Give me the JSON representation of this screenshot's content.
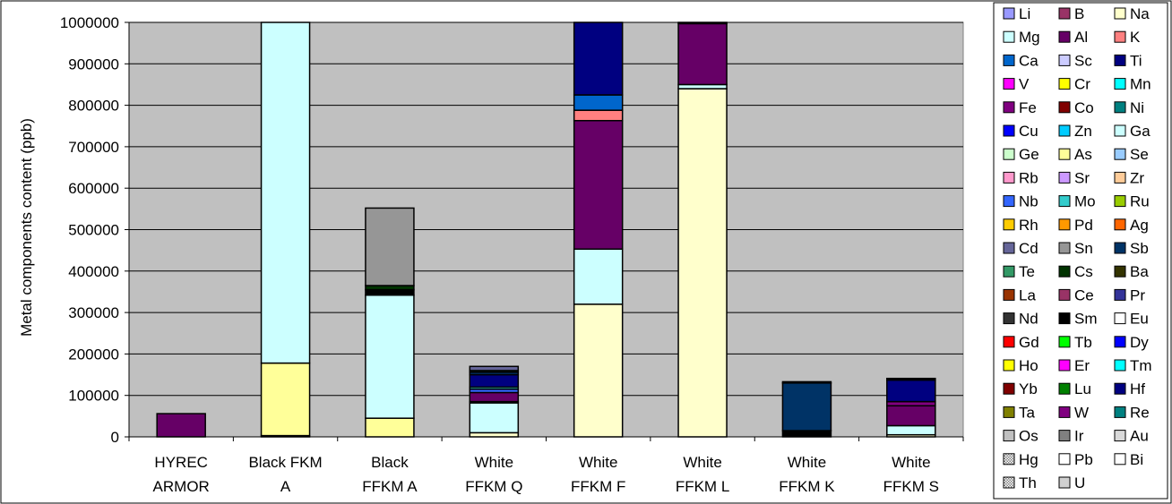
{
  "chart_data": {
    "type": "bar",
    "stacked": true,
    "title": "",
    "xlabel": "",
    "ylabel": "Metal components content (ppb)",
    "ylim": [
      0,
      1000000
    ],
    "yticks": [
      "0",
      "100000",
      "200000",
      "300000",
      "400000",
      "500000",
      "600000",
      "700000",
      "800000",
      "900000",
      "1000000"
    ],
    "ytick_values": [
      0,
      100000,
      200000,
      300000,
      400000,
      500000,
      600000,
      700000,
      800000,
      900000,
      1000000
    ],
    "grid": true,
    "plot_background": "#c0c0c0",
    "legend_position": "right",
    "categories": [
      [
        "HYREC",
        "ARMOR"
      ],
      [
        "Black FKM",
        "A"
      ],
      [
        "Black",
        "FFKM A"
      ],
      [
        "White",
        "FFKM Q"
      ],
      [
        "White",
        "FFKM F"
      ],
      [
        "White",
        "FFKM L"
      ],
      [
        "White",
        "FFKM K"
      ],
      [
        "White",
        "FFKM S"
      ]
    ],
    "legend": [
      {
        "name": "Li",
        "color": "#9999ff"
      },
      {
        "name": "B",
        "color": "#993366"
      },
      {
        "name": "Na",
        "color": "#ffffcc"
      },
      {
        "name": "Mg",
        "color": "#ccffff"
      },
      {
        "name": "Al",
        "color": "#660066"
      },
      {
        "name": "K",
        "color": "#ff8080"
      },
      {
        "name": "Ca",
        "color": "#0066cc"
      },
      {
        "name": "Sc",
        "color": "#ccccff"
      },
      {
        "name": "Ti",
        "color": "#000080"
      },
      {
        "name": "V",
        "color": "#ff00ff"
      },
      {
        "name": "Cr",
        "color": "#ffff00"
      },
      {
        "name": "Mn",
        "color": "#00ffff"
      },
      {
        "name": "Fe",
        "color": "#800080"
      },
      {
        "name": "Co",
        "color": "#800000"
      },
      {
        "name": "Ni",
        "color": "#008080"
      },
      {
        "name": "Cu",
        "color": "#0000ff"
      },
      {
        "name": "Zn",
        "color": "#00ccff"
      },
      {
        "name": "Ga",
        "color": "#ccffff"
      },
      {
        "name": "Ge",
        "color": "#ccffcc"
      },
      {
        "name": "As",
        "color": "#ffff99"
      },
      {
        "name": "Se",
        "color": "#99ccff"
      },
      {
        "name": "Rb",
        "color": "#ff99cc"
      },
      {
        "name": "Sr",
        "color": "#cc99ff"
      },
      {
        "name": "Zr",
        "color": "#ffcc99"
      },
      {
        "name": "Nb",
        "color": "#3366ff"
      },
      {
        "name": "Mo",
        "color": "#33cccc"
      },
      {
        "name": "Ru",
        "color": "#99cc00"
      },
      {
        "name": "Rh",
        "color": "#ffcc00"
      },
      {
        "name": "Pd",
        "color": "#ff9900"
      },
      {
        "name": "Ag",
        "color": "#ff6600"
      },
      {
        "name": "Cd",
        "color": "#666699"
      },
      {
        "name": "Sn",
        "color": "#969696"
      },
      {
        "name": "Sb",
        "color": "#003366"
      },
      {
        "name": "Te",
        "color": "#339966"
      },
      {
        "name": "Cs",
        "color": "#003300"
      },
      {
        "name": "Ba",
        "color": "#333300"
      },
      {
        "name": "La",
        "color": "#993300"
      },
      {
        "name": "Ce",
        "color": "#993366"
      },
      {
        "name": "Pr",
        "color": "#333399"
      },
      {
        "name": "Nd",
        "color": "#333333"
      },
      {
        "name": "Sm",
        "color": "#000000"
      },
      {
        "name": "Eu",
        "color": "#ffffff"
      },
      {
        "name": "Gd",
        "color": "#ff0000"
      },
      {
        "name": "Tb",
        "color": "#00ff00"
      },
      {
        "name": "Dy",
        "color": "#0000ff"
      },
      {
        "name": "Ho",
        "color": "#ffff00"
      },
      {
        "name": "Er",
        "color": "#ff00ff"
      },
      {
        "name": "Tm",
        "color": "#00ffff"
      },
      {
        "name": "Yb",
        "color": "#800000"
      },
      {
        "name": "Lu",
        "color": "#008000"
      },
      {
        "name": "Hf",
        "color": "#000080"
      },
      {
        "name": "Ta",
        "color": "#808000"
      },
      {
        "name": "W",
        "color": "#800080"
      },
      {
        "name": "Re",
        "color": "#008080"
      },
      {
        "name": "Os",
        "color": "#c0c0c0"
      },
      {
        "name": "Ir",
        "color": "#808080"
      },
      {
        "name": "Au",
        "color": "#d9d9d9"
      },
      {
        "name": "Hg",
        "color": "#a0a0a0",
        "pattern": true
      },
      {
        "name": "Pb",
        "color": "#ffffff"
      },
      {
        "name": "Bi",
        "color": "#ffffff"
      },
      {
        "name": "Th",
        "color": "#a0a0a0",
        "pattern": true
      },
      {
        "name": "U",
        "color": "#d0d0d0"
      }
    ],
    "stacks": [
      [
        {
          "element": "Al",
          "value": 56000
        }
      ],
      [
        {
          "element": "Na",
          "value": 3000
        },
        {
          "element": "As",
          "value": 175000
        },
        {
          "element": "Mg",
          "value": 822000
        }
      ],
      [
        {
          "element": "As",
          "value": 45000
        },
        {
          "element": "Mg",
          "value": 297000
        },
        {
          "element": "Sm",
          "value": 13000
        },
        {
          "element": "Cs",
          "value": 10000
        },
        {
          "element": "Sn",
          "value": 187000
        }
      ],
      [
        {
          "element": "Na",
          "value": 10000
        },
        {
          "element": "Mg",
          "value": 72000
        },
        {
          "element": "K",
          "value": 3000
        },
        {
          "element": "Al",
          "value": 22000
        },
        {
          "element": "Nb",
          "value": 8000
        },
        {
          "element": "Mo",
          "value": 5000
        },
        {
          "element": "Ti",
          "value": 30000
        },
        {
          "element": "Sb",
          "value": 6000
        },
        {
          "element": "Cs",
          "value": 4000
        },
        {
          "element": "Cd",
          "value": 10000
        }
      ],
      [
        {
          "element": "Na",
          "value": 320000
        },
        {
          "element": "Mg",
          "value": 133000
        },
        {
          "element": "Al",
          "value": 310000
        },
        {
          "element": "K",
          "value": 25000
        },
        {
          "element": "Ca",
          "value": 37000
        },
        {
          "element": "Ti",
          "value": 175000
        }
      ],
      [
        {
          "element": "Na",
          "value": 840000
        },
        {
          "element": "Mg",
          "value": 10000
        },
        {
          "element": "Al",
          "value": 147000
        },
        {
          "element": "K",
          "value": 3000
        }
      ],
      [
        {
          "element": "Sm",
          "value": 15000
        },
        {
          "element": "Sb",
          "value": 115000
        },
        {
          "element": "Cs",
          "value": 3000
        }
      ],
      [
        {
          "element": "Na",
          "value": 5000
        },
        {
          "element": "Mg",
          "value": 22000
        },
        {
          "element": "Al",
          "value": 48000
        },
        {
          "element": "Fe",
          "value": 10000
        },
        {
          "element": "Ti",
          "value": 52000
        },
        {
          "element": "Sm",
          "value": 4000
        }
      ]
    ]
  }
}
